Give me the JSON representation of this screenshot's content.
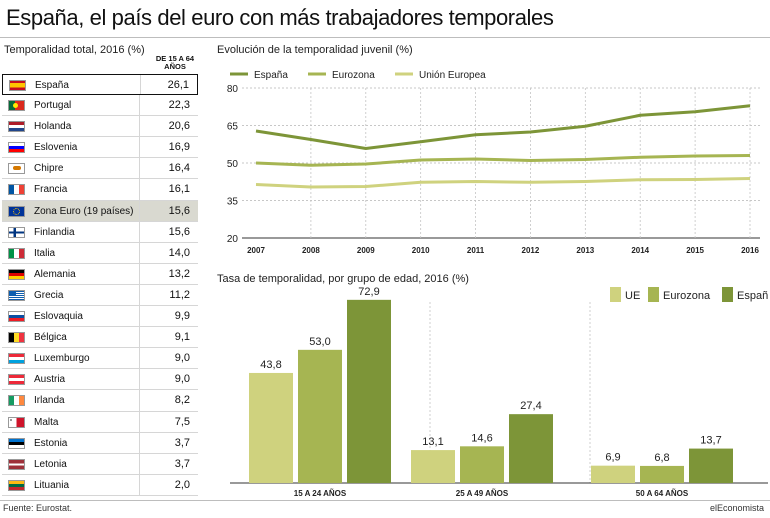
{
  "title": "España, el país del euro con más trabajadores temporales",
  "table": {
    "subtitle": "Temporalidad total, 2016 (%)",
    "column_header": "DE 15 A 64 AÑOS",
    "rows": [
      {
        "country": "España",
        "value": "26,1",
        "flag": "spain"
      },
      {
        "country": "Portugal",
        "value": "22,3",
        "flag": "portugal"
      },
      {
        "country": "Holanda",
        "value": "20,6",
        "flag": "netherlands"
      },
      {
        "country": "Eslovenia",
        "value": "16,9",
        "flag": "slovenia"
      },
      {
        "country": "Chipre",
        "value": "16,4",
        "flag": "cyprus"
      },
      {
        "country": "Francia",
        "value": "16,1",
        "flag": "france"
      },
      {
        "country": "Zona Euro (19 países)",
        "value": "15,6",
        "flag": "eu"
      },
      {
        "country": "Finlandia",
        "value": "15,6",
        "flag": "finland"
      },
      {
        "country": "Italia",
        "value": "14,0",
        "flag": "italy"
      },
      {
        "country": "Alemania",
        "value": "13,2",
        "flag": "germany"
      },
      {
        "country": "Grecia",
        "value": "11,2",
        "flag": "greece"
      },
      {
        "country": "Eslovaquia",
        "value": "9,9",
        "flag": "slovakia"
      },
      {
        "country": "Bélgica",
        "value": "9,1",
        "flag": "belgium"
      },
      {
        "country": "Luxemburgo",
        "value": "9,0",
        "flag": "luxembourg"
      },
      {
        "country": "Austria",
        "value": "9,0",
        "flag": "austria"
      },
      {
        "country": "Irlanda",
        "value": "8,2",
        "flag": "ireland"
      },
      {
        "country": "Malta",
        "value": "7,5",
        "flag": "malta"
      },
      {
        "country": "Estonia",
        "value": "3,7",
        "flag": "estonia"
      },
      {
        "country": "Letonia",
        "value": "3,7",
        "flag": "latvia"
      },
      {
        "country": "Lituania",
        "value": "2,0",
        "flag": "lithuania"
      }
    ]
  },
  "footer": {
    "source": "Fuente: Eurostat.",
    "brand": "elEconomista"
  },
  "colors": {
    "espana": "#7d9538",
    "eurozona": "#a6b552",
    "ue": "#cfd27e"
  },
  "chart_data": [
    {
      "type": "line",
      "title": "Evolución de la temporalidad juvenil (%)",
      "x": [
        2007,
        2008,
        2009,
        2010,
        2011,
        2012,
        2013,
        2014,
        2015,
        2016
      ],
      "x_tick_labels": [
        "2007",
        "2008",
        "2009",
        "2010",
        "2011",
        "2012",
        "2013",
        "2014",
        "2015",
        "2016"
      ],
      "ylim": [
        20,
        80
      ],
      "y_ticks": [
        20,
        35,
        50,
        65,
        80
      ],
      "grid": true,
      "legend_position": "top-left",
      "series": [
        {
          "name": "España",
          "color": "#7d9538",
          "values": [
            62.8,
            59.4,
            55.8,
            58.5,
            61.3,
            62.4,
            64.7,
            69.1,
            70.5,
            72.9
          ]
        },
        {
          "name": "Eurozona",
          "color": "#a6b552",
          "values": [
            50.0,
            49.1,
            49.6,
            51.2,
            51.6,
            51.0,
            51.4,
            52.3,
            52.8,
            53.0
          ]
        },
        {
          "name": "Unión Europea",
          "color": "#cfd27e",
          "values": [
            41.4,
            40.4,
            40.6,
            42.3,
            42.6,
            42.3,
            42.6,
            43.3,
            43.4,
            43.8
          ]
        }
      ]
    },
    {
      "type": "bar",
      "title": "Tasa de temporalidad, por grupo de edad, 2016 (%)",
      "categories": [
        "15 A 24 años",
        "25 A 49 años",
        "50 A 64 años"
      ],
      "ylim": [
        0,
        80
      ],
      "legend_position": "top-right",
      "series": [
        {
          "name": "UE",
          "color": "#cfd27e",
          "values": [
            43.8,
            13.1,
            6.9
          ],
          "labels": [
            "43,8",
            "13,1",
            "6,9"
          ]
        },
        {
          "name": "Eurozona",
          "color": "#a6b552",
          "values": [
            53.0,
            14.6,
            6.8
          ],
          "labels": [
            "53,0",
            "14,6",
            "6,8"
          ]
        },
        {
          "name": "España",
          "color": "#7d9538",
          "values": [
            72.9,
            27.4,
            13.7
          ],
          "labels": [
            "72,9",
            "27,4",
            "13,7"
          ]
        }
      ]
    }
  ]
}
